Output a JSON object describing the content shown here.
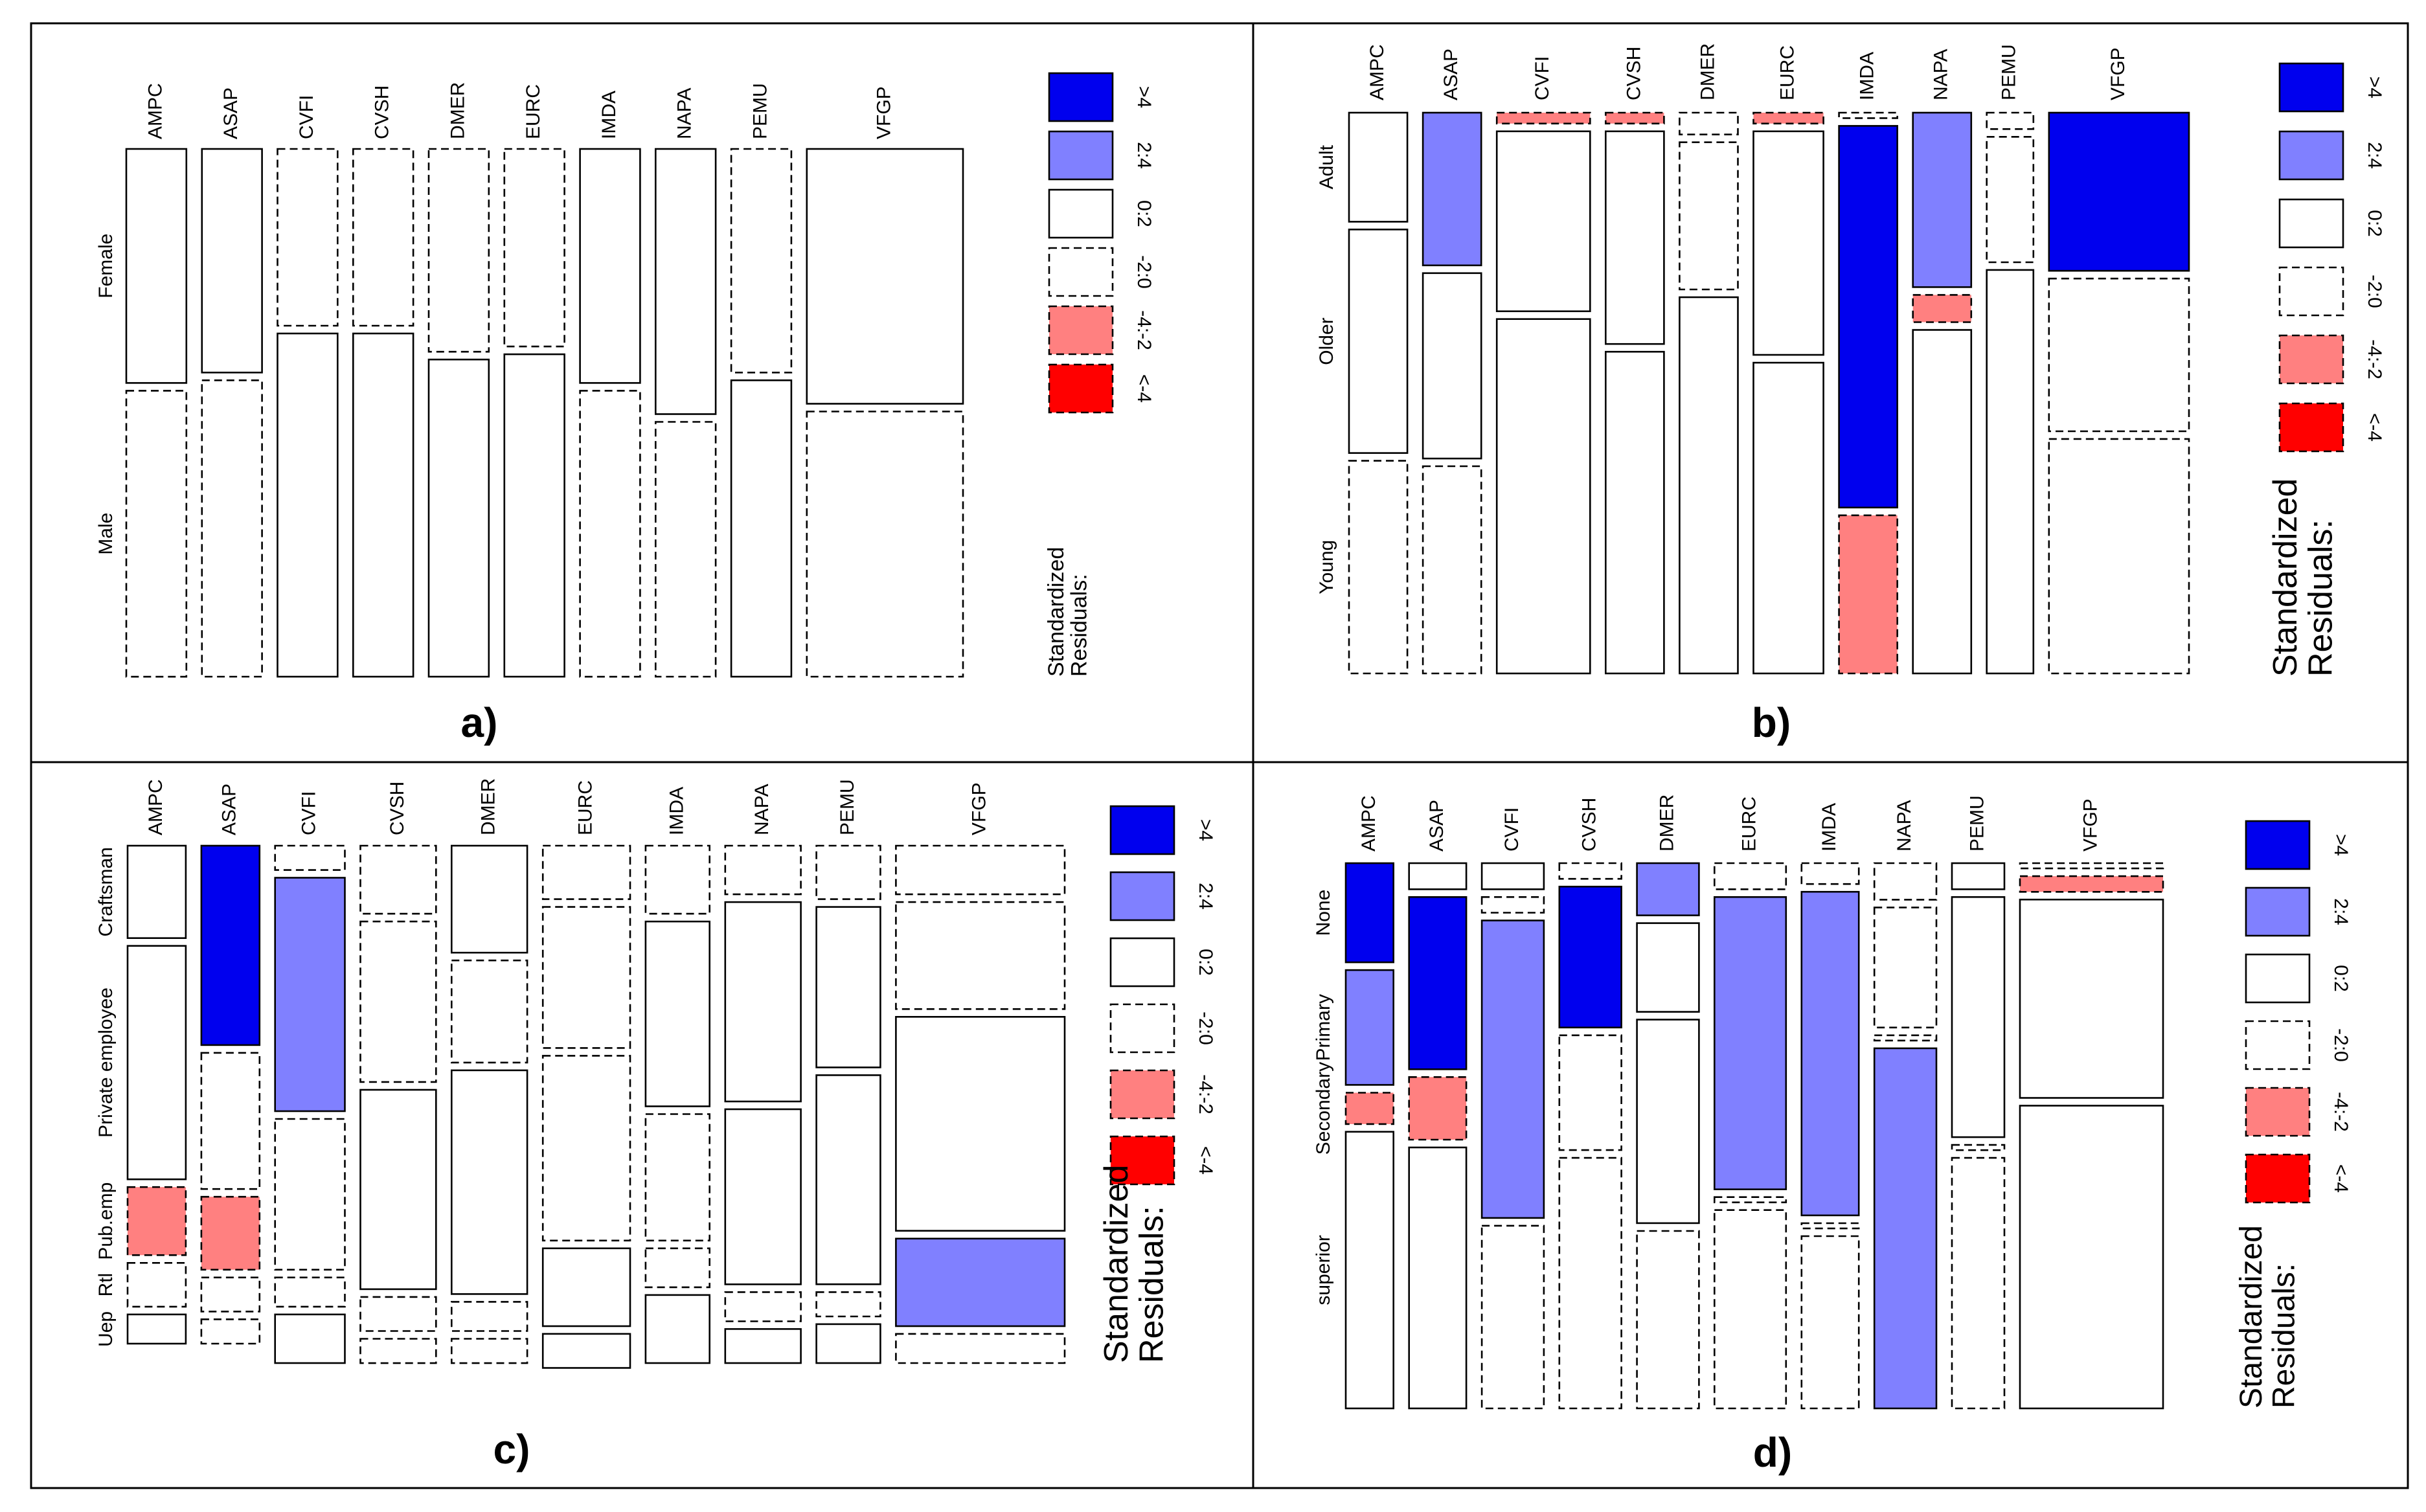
{
  "figure": {
    "columns": [
      "AMPC",
      "ASAP",
      "CVFI",
      "CVSH",
      "DMER",
      "EURC",
      "IMDA",
      "NAPA",
      "PEMU",
      "VFGP"
    ],
    "legend": {
      "title_line1": "Standardized",
      "title_line2": "Residuals:",
      "items": [
        {
          "label": ">4",
          "fill": "#0000ee",
          "dashed": false
        },
        {
          "label": "2:4",
          "fill": "#8080ff",
          "dashed": false
        },
        {
          "label": "0:2",
          "fill": "#ffffff",
          "dashed": false
        },
        {
          "label": "-2:0",
          "fill": "#ffffff",
          "dashed": true
        },
        {
          "label": "-4:-2",
          "fill": "#ff8080",
          "dashed": true
        },
        {
          "label": "<-4",
          "fill": "#ff0000",
          "dashed": true
        }
      ]
    }
  },
  "chart_data": [
    {
      "type": "mosaic",
      "panel_label": "a)",
      "row_variable_levels": [
        "Female",
        "Male"
      ],
      "column_weights": [
        1,
        1,
        1,
        1,
        1,
        1,
        1,
        1,
        1,
        2.6
      ],
      "cells": [
        [
          {
            "p": 0.45,
            "r": "0:2"
          },
          {
            "p": 0.55,
            "r": "-2:0"
          }
        ],
        [
          {
            "p": 0.43,
            "r": "0:2"
          },
          {
            "p": 0.57,
            "r": "-2:0"
          }
        ],
        [
          {
            "p": 0.34,
            "r": "-2:0"
          },
          {
            "p": 0.66,
            "r": "0:2"
          }
        ],
        [
          {
            "p": 0.34,
            "r": "-2:0"
          },
          {
            "p": 0.66,
            "r": "0:2"
          }
        ],
        [
          {
            "p": 0.39,
            "r": "-2:0"
          },
          {
            "p": 0.61,
            "r": "0:2"
          }
        ],
        [
          {
            "p": 0.38,
            "r": "-2:0"
          },
          {
            "p": 0.62,
            "r": "0:2"
          }
        ],
        [
          {
            "p": 0.45,
            "r": "0:2"
          },
          {
            "p": 0.55,
            "r": "-2:0"
          }
        ],
        [
          {
            "p": 0.51,
            "r": "0:2"
          },
          {
            "p": 0.49,
            "r": "-2:0"
          }
        ],
        [
          {
            "p": 0.43,
            "r": "-2:0"
          },
          {
            "p": 0.57,
            "r": "0:2"
          }
        ],
        [
          {
            "p": 0.49,
            "r": "0:2"
          },
          {
            "p": 0.51,
            "r": "-2:0"
          }
        ]
      ]
    },
    {
      "type": "mosaic",
      "panel_label": "b)",
      "row_variable_levels": [
        "Adult",
        "Older",
        "Young"
      ],
      "column_weights": [
        1,
        1,
        1.6,
        1,
        1,
        1.2,
        1,
        1,
        0.8,
        2.4
      ],
      "cells": [
        [
          {
            "p": 0.2,
            "r": "0:2"
          },
          {
            "p": 0.41,
            "r": "0:2"
          },
          {
            "p": 0.39,
            "r": "-2:0"
          }
        ],
        [
          {
            "p": 0.28,
            "r": "2:4"
          },
          {
            "p": 0.34,
            "r": "0:2"
          },
          {
            "p": 0.38,
            "r": "-2:0"
          }
        ],
        [
          {
            "p": 0.02,
            "r": "-4:-2"
          },
          {
            "p": 0.33,
            "r": "0:2"
          },
          {
            "p": 0.65,
            "r": "0:2"
          }
        ],
        [
          {
            "p": 0.02,
            "r": "-4:-2"
          },
          {
            "p": 0.39,
            "r": "0:2"
          },
          {
            "p": 0.59,
            "r": "0:2"
          }
        ],
        [
          {
            "p": 0.04,
            "r": "-2:0"
          },
          {
            "p": 0.27,
            "r": "-2:0"
          },
          {
            "p": 0.69,
            "r": "0:2"
          }
        ],
        [
          {
            "p": 0.02,
            "r": "-4:-2"
          },
          {
            "p": 0.41,
            "r": "0:2"
          },
          {
            "p": 0.57,
            "r": "0:2"
          }
        ],
        [
          {
            "p": 0.01,
            "r": "-2:0"
          },
          {
            "p": 0.7,
            "r": ">4"
          },
          {
            "p": 0.29,
            "r": "-4:-2"
          }
        ],
        [
          {
            "p": 0.32,
            "r": "2:4"
          },
          {
            "p": 0.05,
            "r": "-4:-2"
          },
          {
            "p": 0.63,
            "r": "0:2"
          }
        ],
        [
          {
            "p": 0.03,
            "r": "-2:0"
          },
          {
            "p": 0.23,
            "r": "-2:0"
          },
          {
            "p": 0.74,
            "r": "0:2"
          }
        ],
        [
          {
            "p": 0.29,
            "r": ">4"
          },
          {
            "p": 0.28,
            "r": "-2:0"
          },
          {
            "p": 0.43,
            "r": "-2:0"
          }
        ]
      ]
    },
    {
      "type": "mosaic",
      "panel_label": "c)",
      "row_variable_levels": [
        "Craftsman",
        "Private employee",
        "Pub.emp",
        "Rtl",
        "Uep"
      ],
      "column_weights": [
        1,
        1,
        1.2,
        1.3,
        1.3,
        1.5,
        1.1,
        1.3,
        1.1,
        2.9
      ],
      "cells": [
        [
          {
            "p": 0.19,
            "r": "0:2"
          },
          {
            "p": 0.48,
            "r": "0:2"
          },
          {
            "p": 0.14,
            "r": "-4:-2"
          },
          {
            "p": 0.09,
            "r": "-2:0"
          },
          {
            "p": 0.06,
            "r": "0:2"
          }
        ],
        [
          {
            "p": 0.41,
            "r": ">4"
          },
          {
            "p": 0.28,
            "r": "-2:0"
          },
          {
            "p": 0.15,
            "r": "-4:-2"
          },
          {
            "p": 0.07,
            "r": "-2:0"
          },
          {
            "p": 0.05,
            "r": "-2:0"
          }
        ],
        [
          {
            "p": 0.05,
            "r": "-2:0"
          },
          {
            "p": 0.48,
            "r": "2:4"
          },
          {
            "p": 0.31,
            "r": "-2:0"
          },
          {
            "p": 0.06,
            "r": "-2:0"
          },
          {
            "p": 0.1,
            "r": "0:2"
          }
        ],
        [
          {
            "p": 0.14,
            "r": "-2:0"
          },
          {
            "p": 0.33,
            "r": "-2:0"
          },
          {
            "p": 0.41,
            "r": "0:2"
          },
          {
            "p": 0.07,
            "r": "-2:0"
          },
          {
            "p": 0.05,
            "r": "-2:0"
          }
        ],
        [
          {
            "p": 0.22,
            "r": "0:2"
          },
          {
            "p": 0.21,
            "r": "-2:0"
          },
          {
            "p": 0.46,
            "r": "0:2"
          },
          {
            "p": 0.06,
            "r": "-2:0"
          },
          {
            "p": 0.05,
            "r": "-2:0"
          }
        ],
        [
          {
            "p": 0.11,
            "r": "-2:0"
          },
          {
            "p": 0.29,
            "r": "-2:0"
          },
          {
            "p": 0.38,
            "r": "-2:0"
          },
          {
            "p": 0.16,
            "r": "0:2"
          },
          {
            "p": 0.07,
            "r": "0:2"
          }
        ],
        [
          {
            "p": 0.14,
            "r": "-2:0"
          },
          {
            "p": 0.38,
            "r": "0:2"
          },
          {
            "p": 0.26,
            "r": "-2:0"
          },
          {
            "p": 0.08,
            "r": "-2:0"
          },
          {
            "p": 0.14,
            "r": "0:2"
          }
        ],
        [
          {
            "p": 0.1,
            "r": "-2:0"
          },
          {
            "p": 0.41,
            "r": "0:2"
          },
          {
            "p": 0.36,
            "r": "0:2"
          },
          {
            "p": 0.06,
            "r": "-2:0"
          },
          {
            "p": 0.07,
            "r": "0:2"
          }
        ],
        [
          {
            "p": 0.11,
            "r": "-2:0"
          },
          {
            "p": 0.33,
            "r": "0:2"
          },
          {
            "p": 0.43,
            "r": "0:2"
          },
          {
            "p": 0.05,
            "r": "-2:0"
          },
          {
            "p": 0.08,
            "r": "0:2"
          }
        ],
        [
          {
            "p": 0.1,
            "r": "-2:0"
          },
          {
            "p": 0.22,
            "r": "-2:0"
          },
          {
            "p": 0.44,
            "r": "0:2"
          },
          {
            "p": 0.18,
            "r": "2:4"
          },
          {
            "p": 0.06,
            "r": "-2:0"
          }
        ]
      ]
    },
    {
      "type": "mosaic",
      "panel_label": "d)",
      "row_variable_levels": [
        "None",
        "Primary",
        "Secondary",
        "superior"
      ],
      "column_weights": [
        1,
        1.2,
        1.3,
        1.3,
        1.3,
        1.5,
        1.2,
        1.3,
        1.1,
        3
      ],
      "cells": [
        [
          {
            "p": 0.19,
            "r": ">4"
          },
          {
            "p": 0.22,
            "r": "2:4"
          },
          {
            "p": 0.06,
            "r": "-4:-2"
          },
          {
            "p": 0.53,
            "r": "0:2"
          }
        ],
        [
          {
            "p": 0.05,
            "r": "0:2"
          },
          {
            "p": 0.33,
            "r": ">4"
          },
          {
            "p": 0.12,
            "r": "-4:-2"
          },
          {
            "p": 0.5,
            "r": "0:2"
          }
        ],
        [
          {
            "p": 0.05,
            "r": "0:2"
          },
          {
            "p": 0.03,
            "r": "-2:0"
          },
          {
            "p": 0.57,
            "r": "2:4"
          },
          {
            "p": 0.35,
            "r": "-2:0"
          }
        ],
        [
          {
            "p": 0.03,
            "r": "-2:0"
          },
          {
            "p": 0.27,
            "r": ">4"
          },
          {
            "p": 0.22,
            "r": "-2:0"
          },
          {
            "p": 0.48,
            "r": "-2:0"
          }
        ],
        [
          {
            "p": 0.1,
            "r": "2:4"
          },
          {
            "p": 0.17,
            "r": "0:2"
          },
          {
            "p": 0.39,
            "r": "0:2"
          },
          {
            "p": 0.34,
            "r": "-2:0"
          }
        ],
        [
          {
            "p": 0.05,
            "r": "-2:0"
          },
          {
            "p": 0.56,
            "r": "2:4"
          },
          {
            "p": 0.01,
            "r": "-2:0"
          },
          {
            "p": 0.38,
            "r": "-2:0"
          }
        ],
        [
          {
            "p": 0.04,
            "r": "-2:0"
          },
          {
            "p": 0.62,
            "r": "2:4"
          },
          {
            "p": 0.01,
            "r": "-2:0"
          },
          {
            "p": 0.33,
            "r": "-2:0"
          }
        ],
        [
          {
            "p": 0.07,
            "r": "-2:0"
          },
          {
            "p": 0.23,
            "r": "-2:0"
          },
          {
            "p": 0.01,
            "r": "-2:0"
          },
          {
            "p": 0.69,
            "r": "2:4"
          }
        ],
        [
          {
            "p": 0.05,
            "r": "0:2"
          },
          {
            "p": 0.46,
            "r": "0:2"
          },
          {
            "p": 0.01,
            "r": "-2:0"
          },
          {
            "p": 0.48,
            "r": "-2:0"
          }
        ],
        [
          {
            "p": 0.01,
            "r": "-2:0"
          },
          {
            "p": 0.03,
            "r": "-4:-2"
          },
          {
            "p": 0.38,
            "r": "0:2"
          },
          {
            "p": 0.58,
            "r": "0:2"
          }
        ]
      ]
    }
  ]
}
